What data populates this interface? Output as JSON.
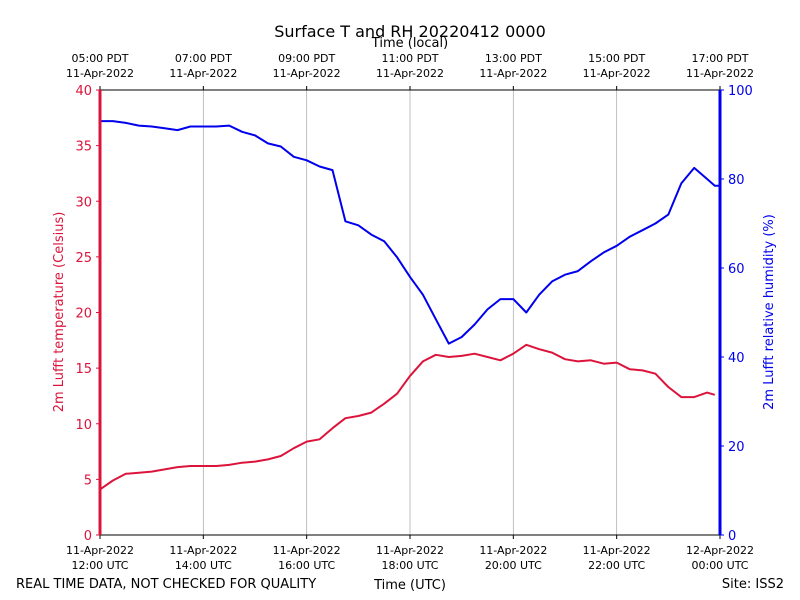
{
  "chart_data": {
    "type": "line",
    "title": "Surface T and RH 20220412 0000",
    "top_axis_label": "Time (local)",
    "xlabel": "Time (UTC)",
    "ylabel_left": "2m Lufft temperature (Celsius)",
    "ylabel_right": "2m Lufft relative humidity (%)",
    "footer_left": "REAL TIME DATA, NOT CHECKED FOR QUALITY",
    "footer_right": "Site: ISS2",
    "xlim_hours_utc": [
      12,
      24
    ],
    "ylim_left": [
      0,
      40
    ],
    "ylim_right": [
      0,
      100
    ],
    "grid_x": true,
    "colors": {
      "temperature": "#dc143c",
      "humidity": "#0000ee",
      "grid": "#b0b0b0"
    },
    "bottom_ticks": [
      {
        "hour": 12,
        "date": "11-Apr-2022",
        "time": "12:00 UTC"
      },
      {
        "hour": 14,
        "date": "11-Apr-2022",
        "time": "14:00 UTC"
      },
      {
        "hour": 16,
        "date": "11-Apr-2022",
        "time": "16:00 UTC"
      },
      {
        "hour": 18,
        "date": "11-Apr-2022",
        "time": "18:00 UTC"
      },
      {
        "hour": 20,
        "date": "11-Apr-2022",
        "time": "20:00 UTC"
      },
      {
        "hour": 22,
        "date": "11-Apr-2022",
        "time": "22:00 UTC"
      },
      {
        "hour": 24,
        "date": "12-Apr-2022",
        "time": "00:00 UTC"
      }
    ],
    "top_ticks": [
      {
        "hour": 12,
        "time": "05:00 PDT",
        "date": "11-Apr-2022"
      },
      {
        "hour": 14,
        "time": "07:00 PDT",
        "date": "11-Apr-2022"
      },
      {
        "hour": 16,
        "time": "09:00 PDT",
        "date": "11-Apr-2022"
      },
      {
        "hour": 18,
        "time": "11:00 PDT",
        "date": "11-Apr-2022"
      },
      {
        "hour": 20,
        "time": "13:00 PDT",
        "date": "11-Apr-2022"
      },
      {
        "hour": 22,
        "time": "15:00 PDT",
        "date": "11-Apr-2022"
      },
      {
        "hour": 24,
        "time": "17:00 PDT",
        "date": "11-Apr-2022"
      }
    ],
    "left_ticks": [
      0,
      5,
      10,
      15,
      20,
      25,
      30,
      35,
      40
    ],
    "right_ticks": [
      0,
      20,
      40,
      60,
      80,
      100
    ],
    "series": [
      {
        "key": "temperature",
        "axis": "left",
        "x": [
          12.0,
          12.25,
          12.5,
          12.75,
          13.0,
          13.25,
          13.5,
          13.75,
          14.0,
          14.25,
          14.5,
          14.75,
          15.0,
          15.25,
          15.5,
          15.75,
          16.0,
          16.25,
          16.5,
          16.75,
          17.0,
          17.25,
          17.5,
          17.75,
          18.0,
          18.25,
          18.5,
          18.75,
          19.0,
          19.25,
          19.5,
          19.75,
          20.0,
          20.25,
          20.5,
          20.75,
          21.0,
          21.25,
          21.5,
          21.75,
          22.0,
          22.25,
          22.5,
          22.75,
          23.0,
          23.25,
          23.5,
          23.75,
          23.9
        ],
        "y": [
          4.1,
          4.9,
          5.5,
          5.6,
          5.7,
          5.9,
          6.1,
          6.2,
          6.2,
          6.2,
          6.3,
          6.5,
          6.6,
          6.8,
          7.1,
          7.8,
          8.4,
          8.6,
          9.6,
          10.5,
          10.7,
          11.0,
          11.8,
          12.7,
          14.3,
          15.6,
          16.2,
          16.0,
          16.1,
          16.3,
          16.0,
          15.7,
          16.3,
          17.1,
          16.7,
          16.4,
          15.8,
          15.6,
          15.7,
          15.4,
          15.5,
          14.9,
          14.8,
          14.5,
          13.3,
          12.4,
          12.4,
          12.8,
          12.6
        ]
      },
      {
        "key": "humidity",
        "axis": "right",
        "x": [
          12.0,
          12.25,
          12.5,
          12.75,
          13.0,
          13.25,
          13.5,
          13.75,
          14.0,
          14.25,
          14.5,
          14.75,
          15.0,
          15.25,
          15.5,
          15.75,
          16.0,
          16.25,
          16.5,
          16.75,
          17.0,
          17.25,
          17.5,
          17.75,
          18.0,
          18.25,
          18.5,
          18.75,
          19.0,
          19.25,
          19.5,
          19.75,
          20.0,
          20.25,
          20.5,
          20.75,
          21.0,
          21.25,
          21.5,
          21.75,
          22.0,
          22.25,
          22.5,
          22.75,
          23.0,
          23.25,
          23.5,
          23.75,
          23.9,
          24.0
        ],
        "y": [
          93.0,
          93.0,
          92.6,
          92.0,
          91.8,
          91.4,
          91.0,
          91.8,
          91.8,
          91.8,
          92.0,
          90.6,
          89.8,
          88.0,
          87.3,
          85.0,
          84.2,
          82.8,
          82.0,
          70.5,
          69.6,
          67.5,
          66.0,
          62.4,
          58.0,
          54.0,
          48.5,
          43.0,
          44.5,
          47.3,
          50.7,
          53.0,
          53.0,
          50.0,
          54.0,
          57.0,
          58.5,
          59.3,
          61.5,
          63.5,
          65.0,
          67.0,
          68.5,
          70.0,
          72.0,
          79.0,
          82.5,
          80.0,
          78.5,
          78.5
        ]
      }
    ]
  }
}
